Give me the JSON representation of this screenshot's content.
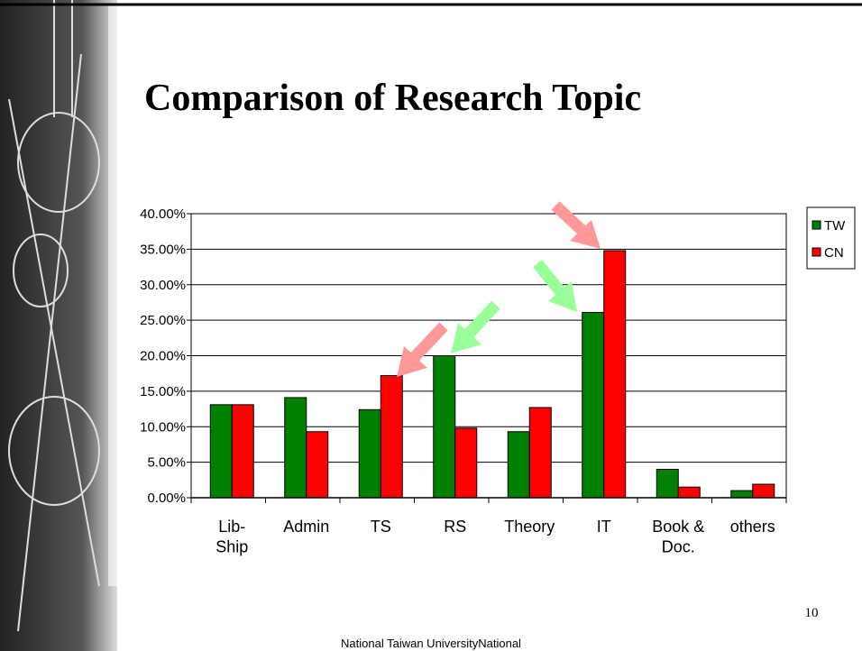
{
  "chart_data": {
    "type": "bar",
    "title": "Comparison of Research Topic",
    "categories": [
      "Lib-\nShip",
      "Admin",
      "TS",
      "RS",
      "Theory",
      "IT",
      "Book &\nDoc.",
      "others"
    ],
    "series": [
      {
        "name": "TW",
        "color": "#008000",
        "values": [
          13.1,
          14.1,
          12.4,
          20.0,
          9.3,
          26.1,
          4.0,
          1.0
        ]
      },
      {
        "name": "CN",
        "color": "#ff0000",
        "values": [
          13.1,
          9.3,
          17.2,
          9.8,
          12.7,
          34.8,
          1.5,
          1.9
        ]
      }
    ],
    "ylim": [
      0,
      40
    ],
    "yticks": [
      {
        "value": 0,
        "label": "0.00%"
      },
      {
        "value": 5,
        "label": "5.00%"
      },
      {
        "value": 10,
        "label": "10.00%"
      },
      {
        "value": 15,
        "label": "15.00%"
      },
      {
        "value": 20,
        "label": "20.00%"
      },
      {
        "value": 25,
        "label": "25.00%"
      },
      {
        "value": 30,
        "label": "30.00%"
      },
      {
        "value": 35,
        "label": "35.00%"
      },
      {
        "value": 40,
        "label": "40.00%"
      }
    ],
    "grid": true,
    "legend": "right"
  },
  "slide": {
    "page_number": "10",
    "footer": "National Taiwan UniversityNational"
  }
}
